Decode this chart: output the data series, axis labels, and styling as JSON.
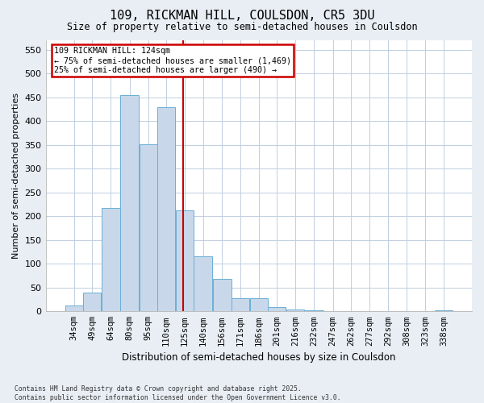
{
  "title_line1": "109, RICKMAN HILL, COULSDON, CR5 3DU",
  "title_line2": "Size of property relative to semi-detached houses in Coulsdon",
  "xlabel": "Distribution of semi-detached houses by size in Coulsdon",
  "ylabel": "Number of semi-detached properties",
  "bar_color": "#c8d8ea",
  "bar_edge_color": "#6aafd6",
  "vline_color": "#cc0000",
  "vline_x": 124,
  "categories": [
    "34sqm",
    "49sqm",
    "64sqm",
    "80sqm",
    "95sqm",
    "110sqm",
    "125sqm",
    "140sqm",
    "156sqm",
    "171sqm",
    "186sqm",
    "201sqm",
    "216sqm",
    "232sqm",
    "247sqm",
    "262sqm",
    "277sqm",
    "292sqm",
    "308sqm",
    "323sqm",
    "338sqm"
  ],
  "bin_edges": [
    26.5,
    41.5,
    56.5,
    72,
    87.5,
    102.5,
    117.5,
    132.5,
    148,
    163.5,
    178.5,
    193.5,
    208.5,
    223.5,
    239.5,
    254.5,
    269.5,
    284.5,
    300,
    315.5,
    330.5,
    345.5
  ],
  "values": [
    12,
    40,
    218,
    455,
    352,
    430,
    213,
    115,
    69,
    28,
    27,
    9,
    4,
    2,
    1,
    1,
    1,
    0,
    0,
    0,
    3
  ],
  "ylim": [
    0,
    570
  ],
  "yticks": [
    0,
    50,
    100,
    150,
    200,
    250,
    300,
    350,
    400,
    450,
    500,
    550
  ],
  "annotation_line1": "109 RICKMAN HILL: 124sqm",
  "annotation_line2": "← 75% of semi-detached houses are smaller (1,469)",
  "annotation_line3": "25% of semi-detached houses are larger (490) →",
  "footnote": "Contains HM Land Registry data © Crown copyright and database right 2025.\nContains public sector information licensed under the Open Government Licence v3.0.",
  "background_color": "#e8eef4",
  "plot_background_color": "#ffffff",
  "grid_color": "#c0cfe0"
}
